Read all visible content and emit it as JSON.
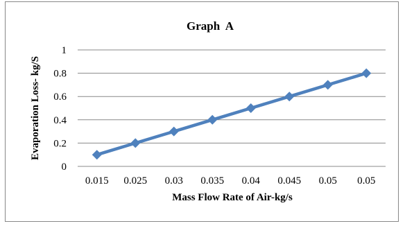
{
  "chart_data": {
    "type": "line",
    "title": "Graph  A",
    "xlabel": "Mass Flow Rate of Air-kg/s",
    "ylabel": "Evaporation Loss- kg/S",
    "categories": [
      "0.015",
      "0.025",
      "0.03",
      "0.035",
      "0.04",
      "0.045",
      "0.05",
      "0.05"
    ],
    "values": [
      0.1,
      0.2,
      0.3,
      0.4,
      0.5,
      0.6,
      0.7,
      0.8
    ],
    "ylim": [
      0,
      1
    ],
    "yticks": [
      "0",
      "0.2",
      "0.4",
      "0.6",
      "0.8",
      "1"
    ],
    "grid": true,
    "legend": "none",
    "color": "#4F81BD",
    "marker": "diamond"
  }
}
